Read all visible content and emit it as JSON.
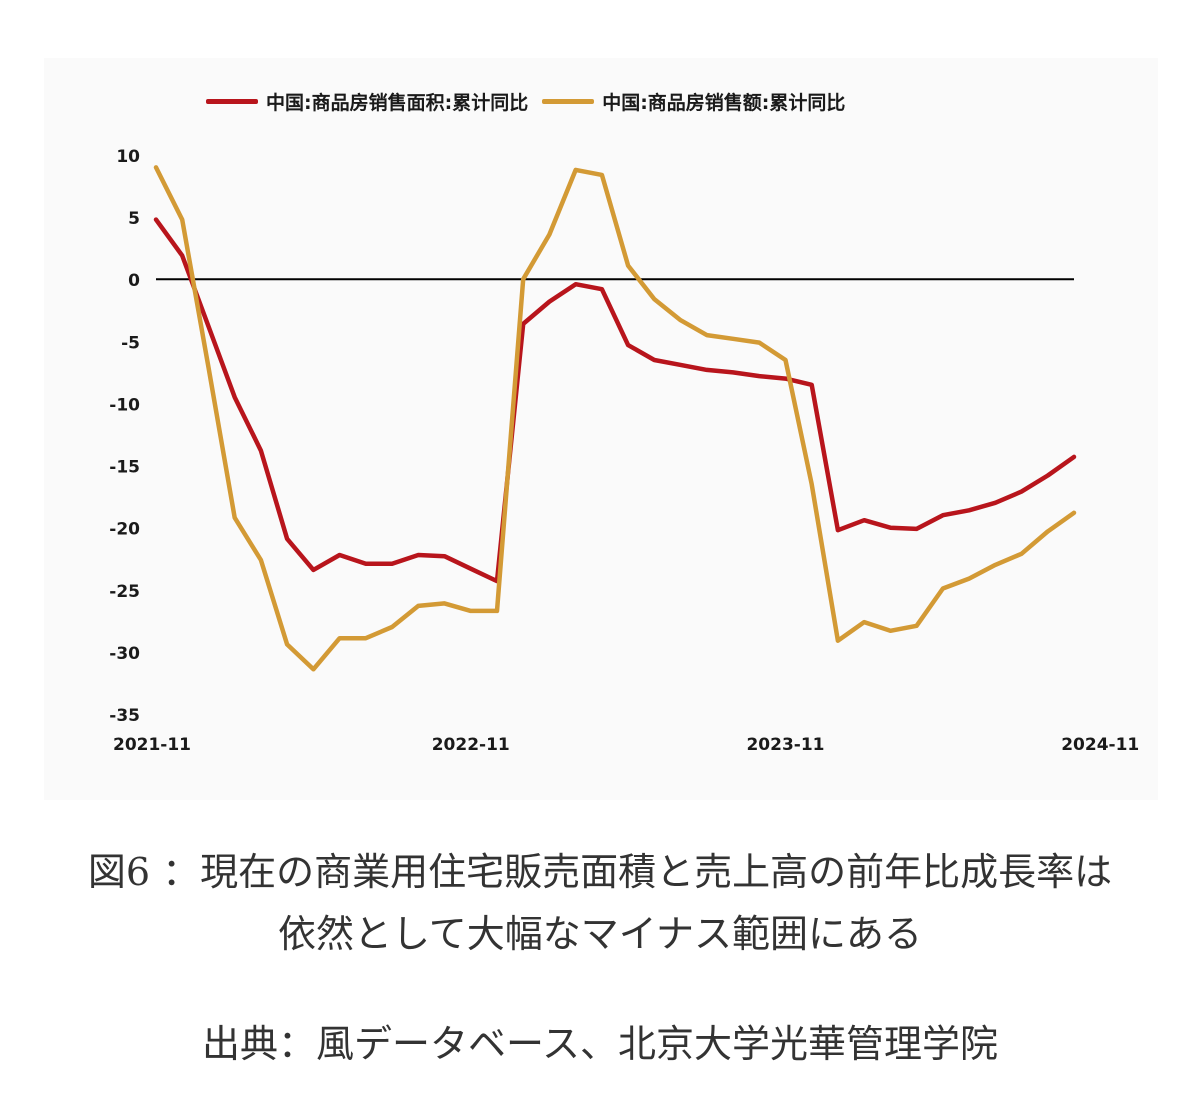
{
  "colors": {
    "area": "#b8151c",
    "amount": "#d39a35",
    "zero_line": "#000000",
    "text": "#1a1a1a"
  },
  "caption": {
    "line1": "図6 ：現在の商業用住宅販売面積と売上高の前年比成長率は",
    "line2": "依然として大幅なマイナス範囲にある",
    "source": "出典：風データベース、北京大学光華管理学院"
  },
  "chart_data": {
    "type": "line",
    "title": "",
    "xlabel": "",
    "ylabel": "",
    "ylim": [
      -35,
      10
    ],
    "yticks": [
      "10",
      "5",
      "0",
      "-5",
      "-10",
      "-15",
      "-20",
      "-25",
      "-30",
      "-35"
    ],
    "xticks": [
      {
        "index": 0,
        "label": "2021-11"
      },
      {
        "index": 12,
        "label": "2022-11"
      },
      {
        "index": 24,
        "label": "2023-11"
      },
      {
        "index": 36,
        "label": "2024-11"
      }
    ],
    "grid": false,
    "zero_line": true,
    "legend": "top",
    "series": [
      {
        "name": "中国:商品房销售面积:累计同比",
        "color": "#b8151c",
        "values": [
          4.8,
          1.9,
          -3.8,
          -9.5,
          -13.8,
          -20.9,
          -23.4,
          -22.2,
          -22.9,
          -22.9,
          -22.2,
          -22.3,
          -23.3,
          -24.3,
          -3.6,
          -1.8,
          -0.4,
          -0.8,
          -5.3,
          -6.5,
          -6.9,
          -7.3,
          -7.5,
          -7.8,
          -8.0,
          -8.5,
          -20.2,
          -19.4,
          -20.0,
          -20.1,
          -19.0,
          -18.6,
          -18.0,
          -17.1,
          -15.8,
          -14.3
        ]
      },
      {
        "name": "中国:商品房销售额:累计同比",
        "color": "#d39a35",
        "values": [
          9.0,
          4.8,
          -7.1,
          -19.2,
          -22.6,
          -29.4,
          -31.4,
          -28.9,
          -28.9,
          -28.0,
          -26.3,
          -26.1,
          -26.7,
          -26.7,
          0.0,
          3.6,
          8.8,
          8.4,
          1.1,
          -1.6,
          -3.3,
          -4.5,
          -4.8,
          -5.1,
          -6.5,
          -16.5,
          -29.1,
          -27.6,
          -28.3,
          -27.9,
          -24.9,
          -24.1,
          -23.0,
          -22.1,
          -20.3,
          -18.8
        ]
      }
    ]
  }
}
